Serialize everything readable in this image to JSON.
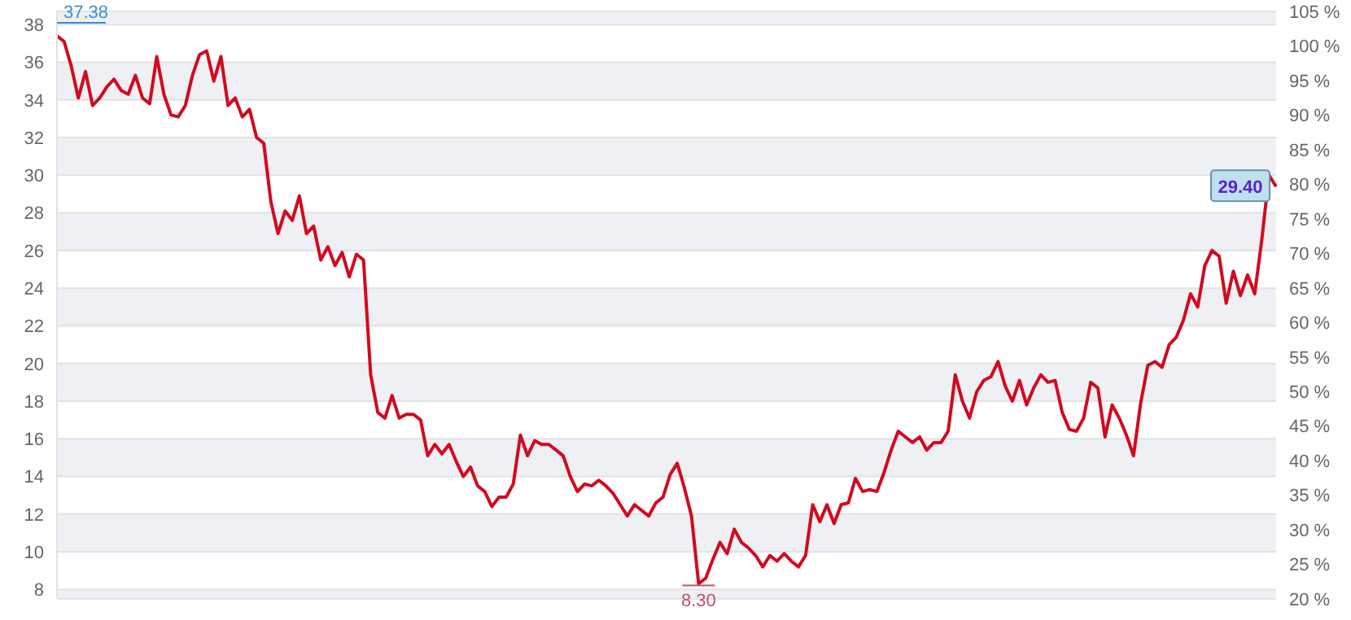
{
  "chart_data": {
    "type": "line",
    "categories": [
      null,
      null,
      null,
      null,
      null,
      null,
      null,
      null,
      null,
      null,
      null,
      null,
      null,
      null,
      null,
      null,
      null,
      null,
      null,
      null,
      null,
      null,
      null,
      null,
      null,
      null,
      null,
      null,
      null,
      null,
      null,
      null,
      null,
      null,
      null,
      null,
      null,
      null,
      null,
      null,
      null,
      null,
      null,
      null,
      null,
      null,
      null,
      null,
      null,
      null,
      null,
      null,
      null,
      null,
      null,
      null,
      null,
      null,
      null,
      null,
      null,
      null,
      null,
      null,
      null,
      null,
      null,
      null,
      null,
      null,
      null,
      null,
      null,
      null,
      null,
      null,
      null,
      null,
      null,
      null,
      null,
      null,
      null,
      null,
      null,
      null,
      null,
      null,
      null,
      null,
      null,
      null,
      null,
      null,
      null,
      null,
      null,
      null,
      null,
      null,
      null,
      null,
      null,
      null,
      null,
      null,
      null,
      null,
      null,
      null,
      null,
      null,
      null,
      null,
      null,
      null,
      null,
      null,
      null,
      null,
      null,
      null,
      null,
      null,
      null,
      null,
      null,
      null,
      null,
      null,
      null,
      null,
      null,
      null,
      null,
      null,
      null,
      null,
      null,
      null,
      null,
      null,
      null,
      null,
      null,
      null,
      null,
      null,
      null,
      null,
      null,
      null,
      null,
      null,
      null,
      null,
      null,
      null,
      null,
      null,
      null,
      null,
      null,
      null,
      null,
      null,
      null,
      null,
      null,
      null,
      null,
      null
    ],
    "series": [
      {
        "color": "#d20a1e",
        "values": [
          37.4,
          37.1,
          35.8,
          34.1,
          35.5,
          33.7,
          34.1,
          34.7,
          35.1,
          34.5,
          34.3,
          35.3,
          34.1,
          33.8,
          36.3,
          34.3,
          33.2,
          33.1,
          33.7,
          35.3,
          36.4,
          36.6,
          35.0,
          36.3,
          33.7,
          34.1,
          33.1,
          33.5,
          32,
          31.7,
          28.6,
          26.9,
          28.1,
          27.6,
          28.9,
          26.9,
          27.3,
          25.5,
          26.2,
          25.2,
          25.9,
          24.6,
          25.8,
          25.5,
          19.4,
          17.4,
          17.1,
          18.3,
          17.1,
          17.3,
          17.3,
          17.0,
          15.1,
          15.7,
          15.2,
          15.7,
          14.8,
          14.0,
          14.5,
          13.5,
          13.2,
          12.4,
          12.9,
          12.9,
          13.6,
          16.2,
          15.1,
          15.9,
          15.7,
          15.7,
          15.4,
          15.1,
          14.0,
          13.2,
          13.6,
          13.5,
          13.8,
          13.5,
          13.1,
          12.5,
          11.9,
          12.5,
          12.2,
          11.9,
          12.6,
          12.9,
          14.1,
          14.7,
          13.4,
          11.9,
          8.3,
          8.6,
          9.6,
          10.5,
          9.9,
          11.2,
          10.5,
          10.2,
          9.8,
          9.2,
          9.8,
          9.5,
          9.9,
          9.5,
          9.2,
          9.8,
          12.5,
          11.6,
          12.5,
          11.5,
          12.5,
          12.6,
          13.9,
          13.2,
          13.3,
          13.2,
          14.2,
          15.4,
          16.4,
          16.1,
          15.8,
          16.1,
          15.4,
          15.8,
          15.8,
          16.4,
          19.4,
          18.0,
          17.1,
          18.5,
          19.1,
          19.3,
          20.1,
          18.8,
          18.0,
          19.1,
          17.8,
          18.7,
          19.4,
          19.0,
          19.1,
          17.4,
          16.5,
          16.4,
          17.1,
          19.0,
          18.7,
          16.1,
          17.8,
          17.1,
          16.2,
          15.1,
          17.9,
          19.9,
          20.1,
          19.8,
          21.0,
          21.4,
          22.3,
          23.7,
          23.0,
          25.2,
          26.0,
          25.7,
          23.2,
          24.9,
          23.6,
          24.7,
          23.7,
          26.6,
          30.0,
          29.4
        ]
      }
    ],
    "ylim": [
      7.5,
      38.7
    ],
    "yticks": [
      8,
      10,
      12,
      14,
      16,
      18,
      20,
      22,
      24,
      26,
      28,
      30,
      32,
      34,
      36,
      38
    ],
    "y2lim": [
      20,
      105
    ],
    "y2ticks": [
      {
        "value": 20,
        "label": "20 %"
      },
      {
        "value": 25,
        "label": "25 %"
      },
      {
        "value": 30,
        "label": "30 %"
      },
      {
        "value": 35,
        "label": "35 %"
      },
      {
        "value": 40,
        "label": "40 %"
      },
      {
        "value": 45,
        "label": "45 %"
      },
      {
        "value": 50,
        "label": "50 %"
      },
      {
        "value": 55,
        "label": "55 %"
      },
      {
        "value": 60,
        "label": "60 %"
      },
      {
        "value": 65,
        "label": "65 %"
      },
      {
        "value": 70,
        "label": "70 %"
      },
      {
        "value": 75,
        "label": "75 %"
      },
      {
        "value": 80,
        "label": "80 %"
      },
      {
        "value": 85,
        "label": "85 %"
      },
      {
        "value": 90,
        "label": "90 %"
      },
      {
        "value": 95,
        "label": "95 %"
      },
      {
        "value": 100,
        "label": "100 %"
      },
      {
        "value": 105,
        "label": "105 %"
      }
    ],
    "grid": "y",
    "legend": false,
    "marker": "none",
    "line_style": "solid",
    "tick_labels": "y",
    "annotations": [
      "37.38",
      {
        "text": "8.30",
        "y": 8.3
      },
      {
        "text": "29.40",
        "y": 29.4
      }
    ]
  }
}
